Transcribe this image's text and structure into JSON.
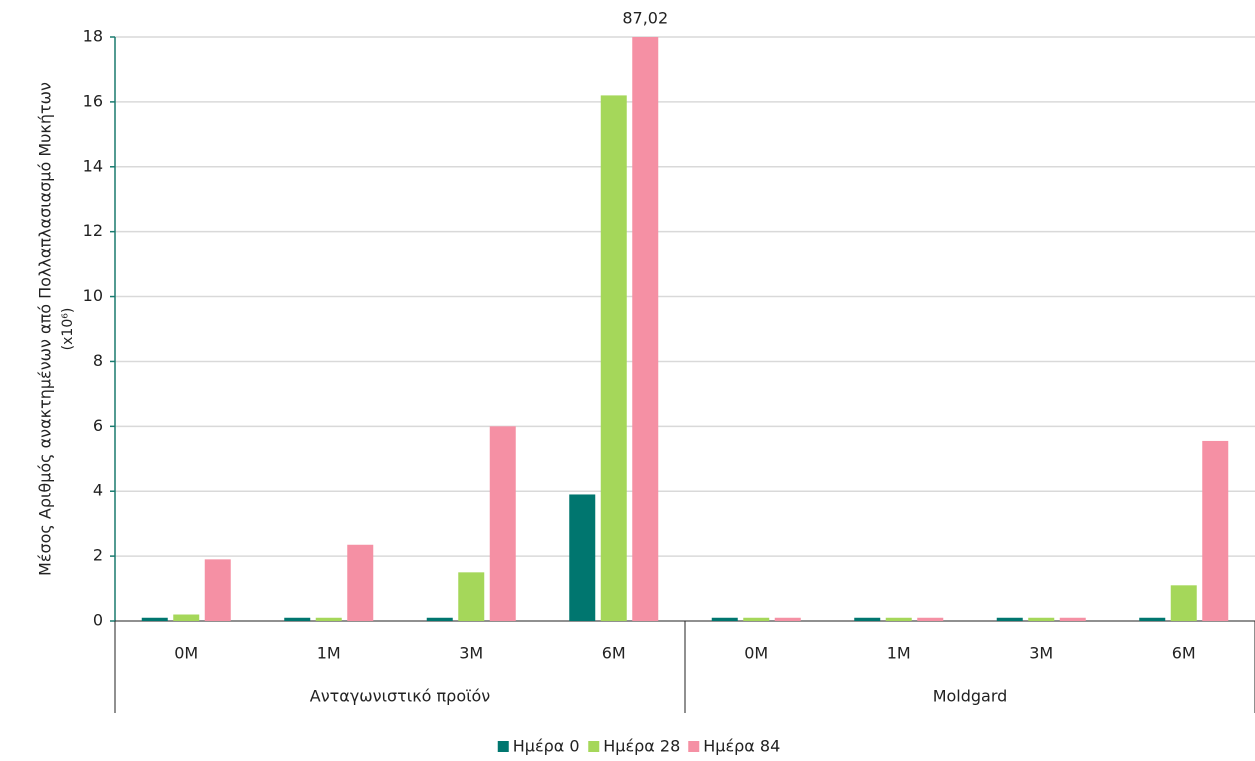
{
  "chart_data": {
    "type": "bar",
    "ylabel": [
      "Μέσος Αριθμός ανακτημένων από Πολλαπλασιασμό Μυκήτων",
      "(x10⁶)"
    ],
    "categories": [
      "0M",
      "1M",
      "3M",
      "6M",
      "0M",
      "1M",
      "3M",
      "6M"
    ],
    "groups": [
      "Ανταγωνιστικό προϊόν",
      "Moldgard"
    ],
    "series": [
      {
        "name": "Ημέρα 0",
        "color": "#00766f",
        "values": [
          0.1,
          0.1,
          0.1,
          3.9,
          0.1,
          0.1,
          0.1,
          0.1
        ]
      },
      {
        "name": "Ημέρα 28",
        "color": "#a5d75a",
        "values": [
          0.2,
          0.1,
          1.5,
          16.2,
          0.1,
          0.1,
          0.1,
          1.1
        ]
      },
      {
        "name": "Ημέρα 84",
        "color": "#f590a4",
        "values": [
          1.9,
          2.35,
          6.0,
          87.02,
          0.1,
          0.1,
          0.1,
          5.55
        ],
        "value_labels": [
          null,
          null,
          null,
          "87,02",
          null,
          null,
          null,
          null
        ]
      }
    ],
    "ylim": [
      0,
      18
    ],
    "yticks": [
      0,
      2,
      4,
      6,
      8,
      10,
      12,
      14,
      16,
      18
    ],
    "grid": true,
    "legend": "bottom"
  }
}
